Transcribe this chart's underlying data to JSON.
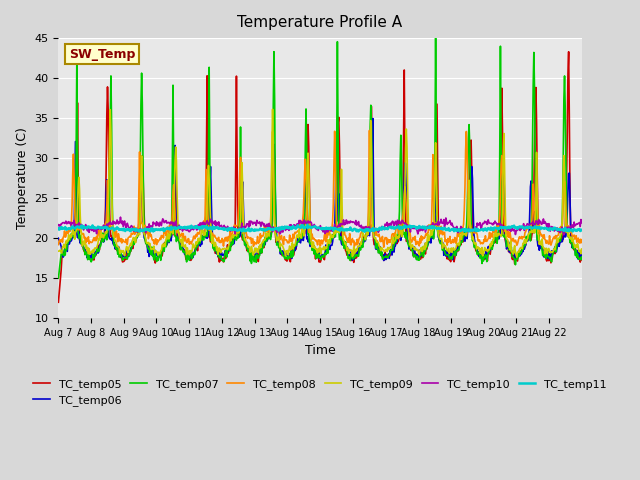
{
  "title": "Temperature Profile A",
  "xlabel": "Time",
  "ylabel": "Temperature (C)",
  "ylim": [
    10,
    45
  ],
  "background_color": "#d8d8d8",
  "plot_bg_color": "#e8e8e8",
  "series": {
    "TC_temp05": {
      "color": "#cc0000",
      "lw": 1.2
    },
    "TC_temp06": {
      "color": "#0000cc",
      "lw": 1.2
    },
    "TC_temp07": {
      "color": "#00cc00",
      "lw": 1.2
    },
    "TC_temp08": {
      "color": "#ff8800",
      "lw": 1.2
    },
    "TC_temp09": {
      "color": "#cccc00",
      "lw": 1.2
    },
    "TC_temp10": {
      "color": "#aa00aa",
      "lw": 1.2
    },
    "TC_temp11": {
      "color": "#00cccc",
      "lw": 1.8
    }
  },
  "legend_labels": [
    "TC_temp05",
    "TC_temp06",
    "TC_temp07",
    "TC_temp08",
    "TC_temp09",
    "TC_temp10",
    "TC_temp11"
  ],
  "legend_colors": [
    "#cc0000",
    "#0000cc",
    "#00cc00",
    "#ff8800",
    "#cccc00",
    "#aa00aa",
    "#00cccc"
  ],
  "sw_temp_label": "SW_Temp",
  "xtick_labels": [
    "Aug 7",
    "Aug 8",
    "Aug 9",
    "Aug 10",
    "Aug 11",
    "Aug 12",
    "Aug 13",
    "Aug 14",
    "Aug 15",
    "Aug 16",
    "Aug 17",
    "Aug 18",
    "Aug 19",
    "Aug 20",
    "Aug 21",
    "Aug 22"
  ],
  "ytick_values": [
    10,
    15,
    20,
    25,
    30,
    35,
    40,
    45
  ],
  "n_days": 16,
  "pts_per_day": 48
}
